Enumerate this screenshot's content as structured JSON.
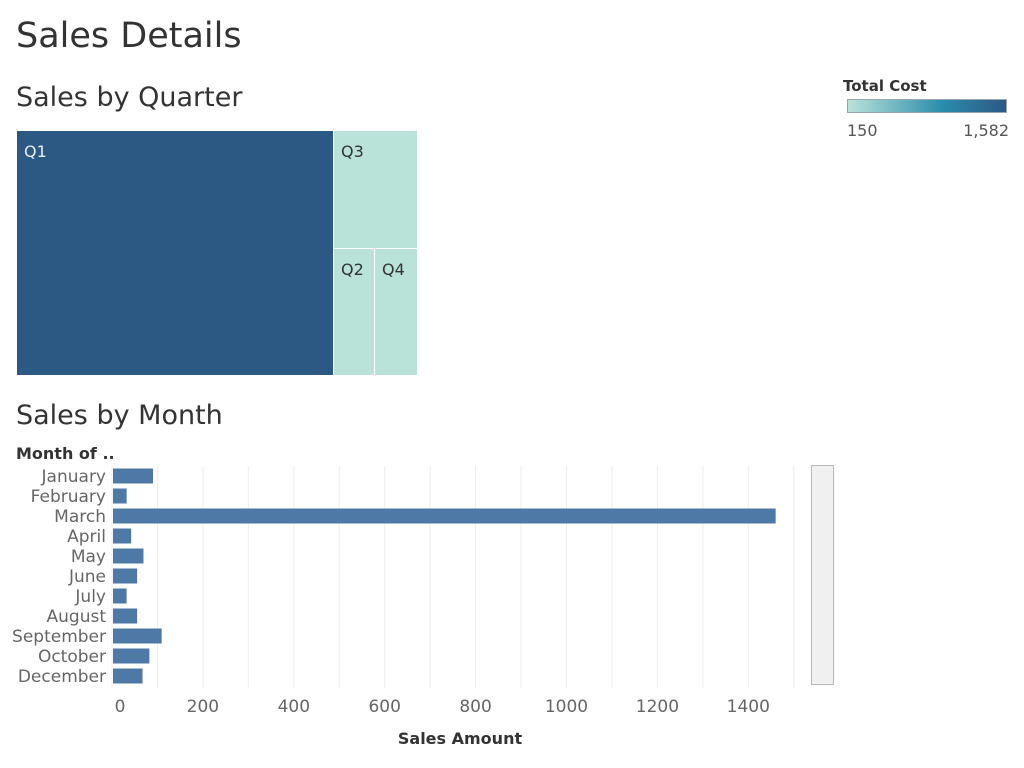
{
  "page": {
    "title": "Sales Details"
  },
  "legend": {
    "title": "Total Cost",
    "min_label": "150",
    "max_label": "1,582",
    "color_low": "#b9e3d9",
    "color_mid": "#2a8cab",
    "color_high": "#2c5884"
  },
  "chart_data": [
    {
      "type": "treemap",
      "title": "Sales by Quarter",
      "tiles": [
        {
          "label": "Q1",
          "size": 1650,
          "color_value": 1582,
          "color": "#2c5884"
        },
        {
          "label": "Q3",
          "size": 210,
          "color_value": 150,
          "color": "#b9e3d9"
        },
        {
          "label": "Q2",
          "size": 110,
          "color_value": 150,
          "color": "#b9e3d9"
        },
        {
          "label": "Q4",
          "size": 115,
          "color_value": 150,
          "color": "#b9e3d9"
        }
      ]
    },
    {
      "type": "bar",
      "orientation": "horizontal",
      "title": "Sales by Month",
      "row_header": "Month of ..",
      "xlabel": "Sales Amount",
      "categories": [
        "January",
        "February",
        "March",
        "April",
        "May",
        "June",
        "July",
        "August",
        "September",
        "October",
        "December"
      ],
      "values": [
        88,
        30,
        1458,
        40,
        67,
        53,
        30,
        53,
        107,
        80,
        65
      ],
      "xlim": [
        0,
        1500
      ],
      "xticks": [
        0,
        200,
        400,
        600,
        800,
        1000,
        1200,
        1400
      ],
      "bar_color": "#4e79a7",
      "grid": true
    }
  ]
}
